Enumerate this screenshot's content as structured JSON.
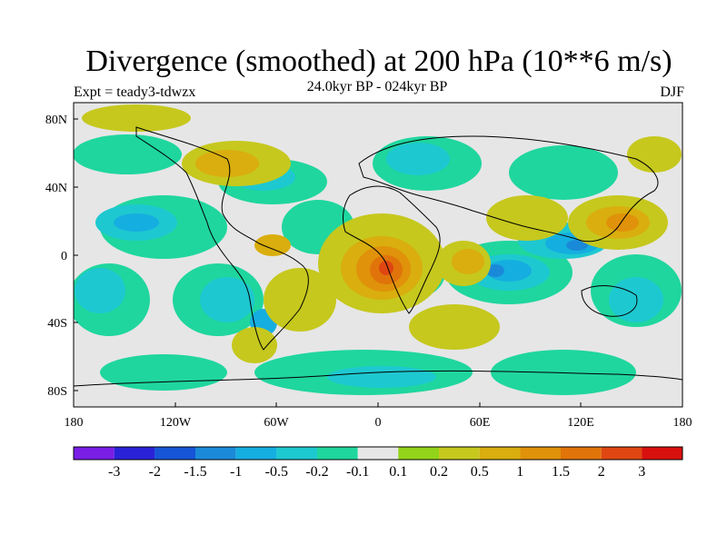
{
  "title": "Divergence (smoothed) at 200 hPa (10**6 m/s)",
  "subtitle": "24.0kyr BP - 024kyr BP",
  "experiment": "Expt = teady3-tdwzx",
  "season": "DJF",
  "map_axes": {
    "lat_ticks": [
      "80N",
      "40N",
      "0",
      "40S",
      "80S"
    ],
    "lon_ticks": [
      "180",
      "120W",
      "60W",
      "0",
      "60E",
      "120E",
      "180"
    ]
  },
  "colorbar": {
    "colors": [
      "#7a1ee6",
      "#2a22d8",
      "#1655d6",
      "#1a8ad8",
      "#15aee0",
      "#1ec8d0",
      "#1fd69e",
      "#e6e6e6",
      "#93d31a",
      "#c6c81e",
      "#d9ae0e",
      "#e0920a",
      "#e0740a",
      "#df4612",
      "#d8100e"
    ],
    "labels": [
      "-3",
      "-2",
      "-1.5",
      "-1",
      "-0.5",
      "-0.2",
      "-0.1",
      "0.1",
      "0.2",
      "0.5",
      "1",
      "1.5",
      "2",
      "3"
    ]
  },
  "colors": {
    "neutral_fill": "#e6e6e6",
    "coastline": "#000000"
  }
}
